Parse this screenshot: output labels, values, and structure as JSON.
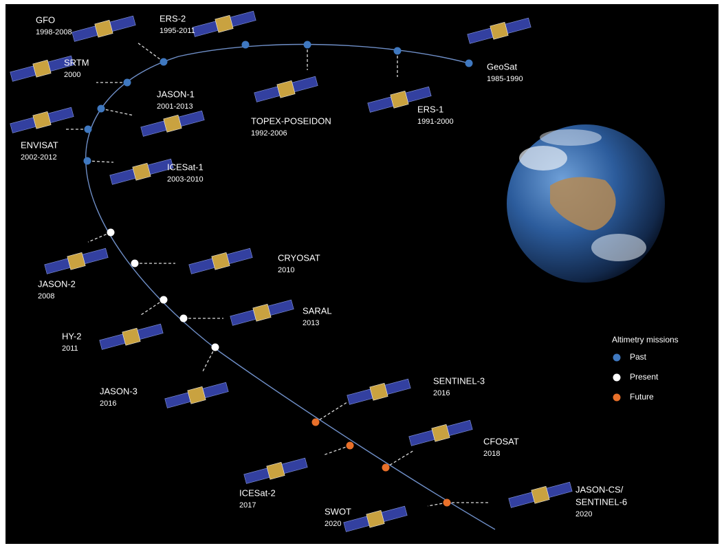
{
  "missions": [
    {
      "name_lines": [
        "GFO"
      ],
      "years": "1998-2008"
    },
    {
      "name_lines": [
        "ERS-2"
      ],
      "years": "1995-2011"
    },
    {
      "name_lines": [
        "SRTM"
      ],
      "years": "2000"
    },
    {
      "name_lines": [
        "JASON-1"
      ],
      "years": "2001-2013"
    },
    {
      "name_lines": [
        "ENVISAT"
      ],
      "years": "2002-2012"
    },
    {
      "name_lines": [
        "ICESat-1"
      ],
      "years": "2003-2010"
    },
    {
      "name_lines": [
        "TOPEX-POSEIDON"
      ],
      "years": "1992-2006"
    },
    {
      "name_lines": [
        "ERS-1"
      ],
      "years": "1991-2000"
    },
    {
      "name_lines": [
        "GeoSat"
      ],
      "years": "1985-1990"
    },
    {
      "name_lines": [
        "JASON-2"
      ],
      "years": "2008"
    },
    {
      "name_lines": [
        "CRYOSAT"
      ],
      "years": "2010"
    },
    {
      "name_lines": [
        "SARAL"
      ],
      "years": "2013"
    },
    {
      "name_lines": [
        "HY-2"
      ],
      "years": "2011"
    },
    {
      "name_lines": [
        "JASON-3"
      ],
      "years": "2016"
    },
    {
      "name_lines": [
        "SENTINEL-3"
      ],
      "years": "2016"
    },
    {
      "name_lines": [
        "CFOSAT"
      ],
      "years": "2018"
    },
    {
      "name_lines": [
        "ICESat-2"
      ],
      "years": "2017"
    },
    {
      "name_lines": [
        "SWOT"
      ],
      "years": "2020"
    },
    {
      "name_lines": [
        "JASON-CS/",
        "SENTINEL-6"
      ],
      "years": "2020"
    }
  ],
  "legend": {
    "title": "Altimetry missions",
    "items": [
      "Past",
      "Present",
      "Future"
    ]
  }
}
